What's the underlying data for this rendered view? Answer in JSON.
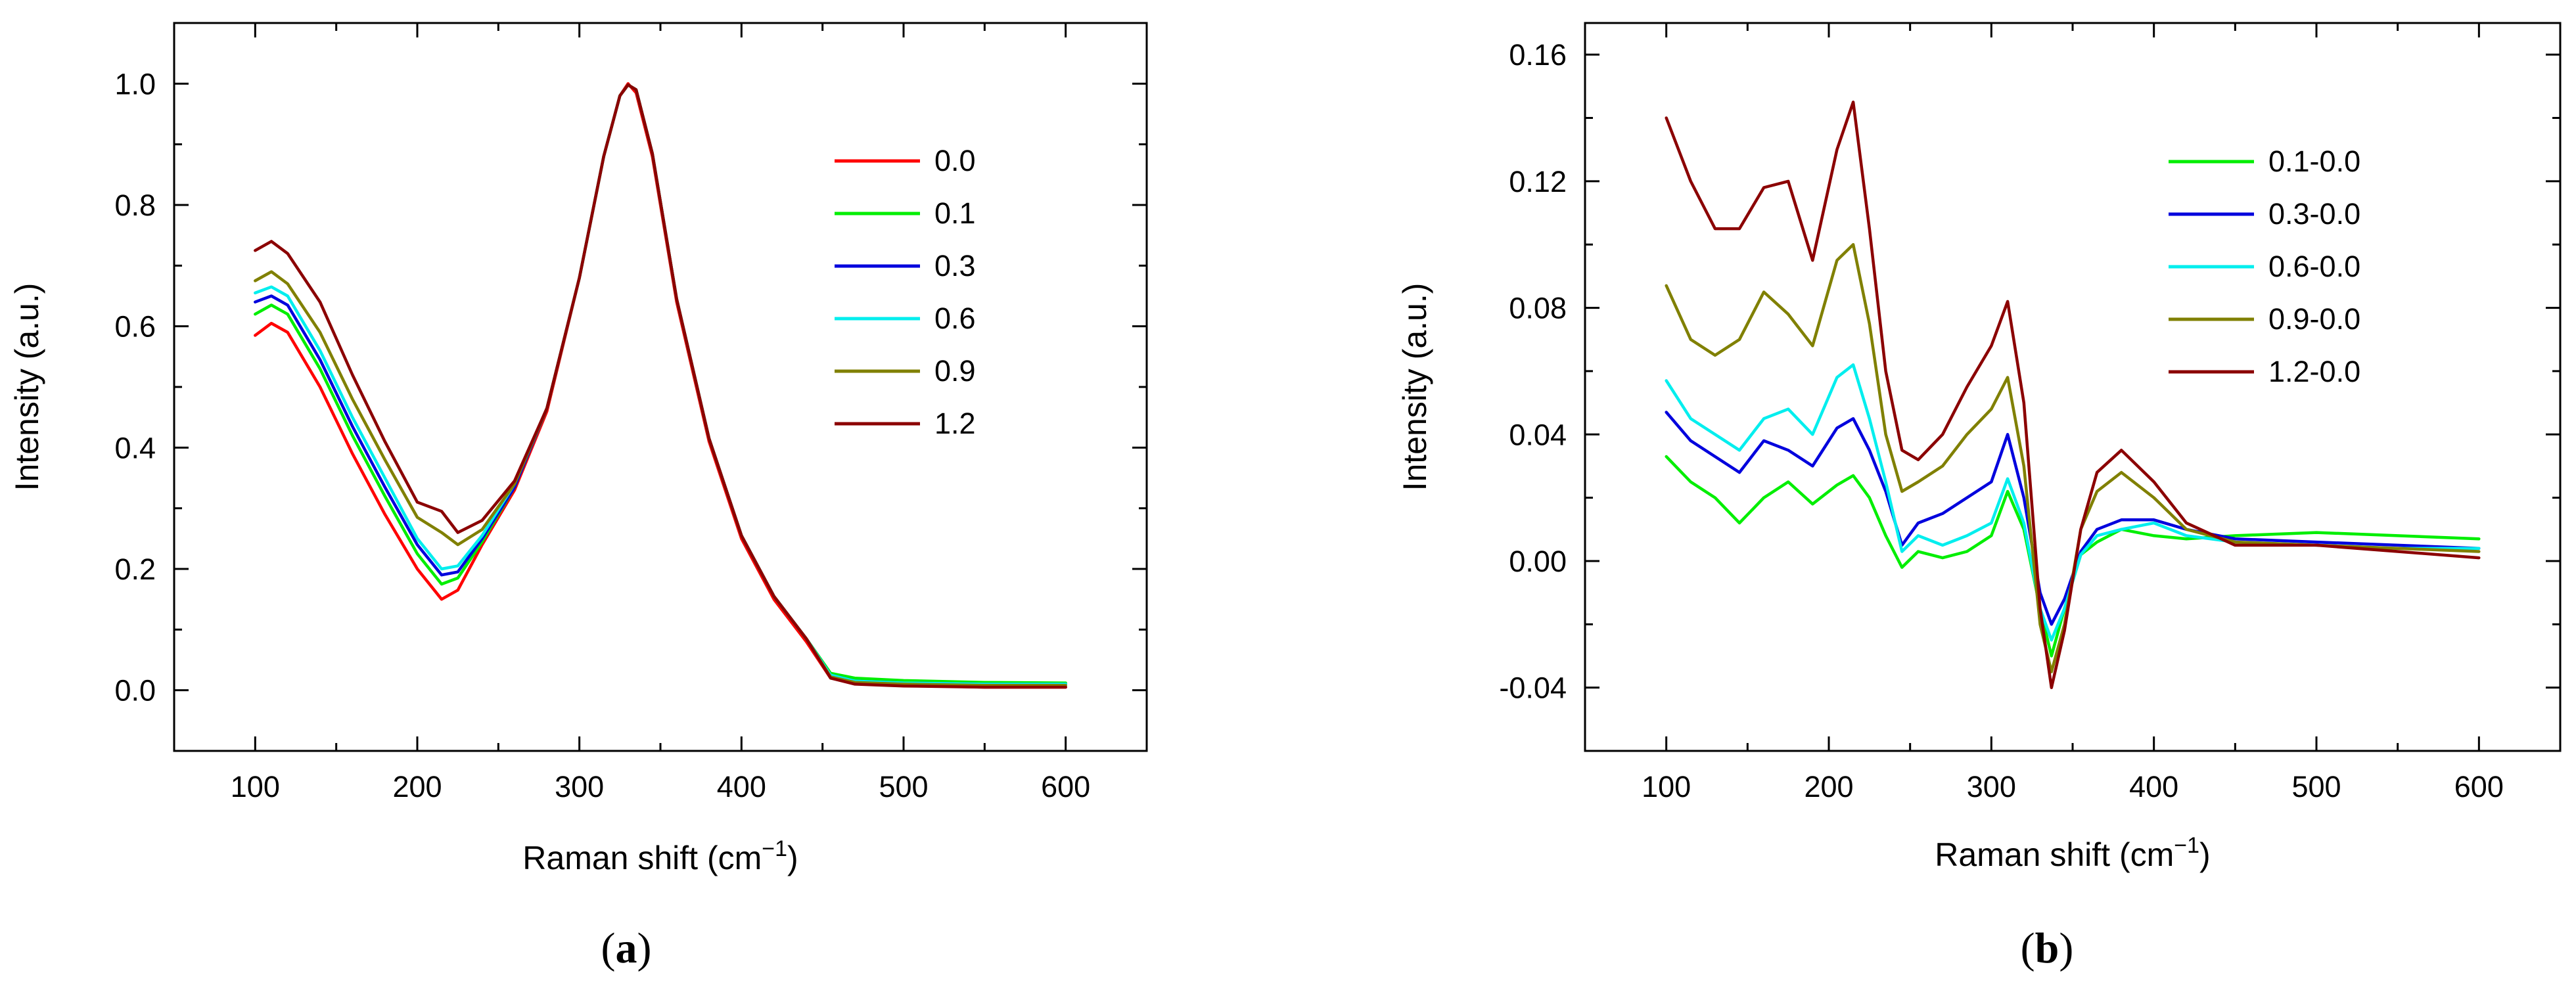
{
  "panels": [
    {
      "label": "a",
      "label_bold": true,
      "chart_data": {
        "type": "line",
        "title": "",
        "xlabel": "Raman shift (cm",
        "xlabel_sup": "−1",
        "xlabel_tail": ")",
        "ylabel": "Intensity (a.u.)",
        "xlim": [
          50,
          650
        ],
        "ylim": [
          -0.1,
          1.1
        ],
        "xticks": [
          100,
          200,
          300,
          400,
          500,
          600
        ],
        "xtick_labels": [
          "100",
          "200",
          "300",
          "400",
          "500",
          "600"
        ],
        "yticks": [
          0.0,
          0.2,
          0.4,
          0.6,
          0.8,
          1.0
        ],
        "ytick_labels": [
          "0.0",
          "0.2",
          "0.4",
          "0.6",
          "0.8",
          "1.0"
        ],
        "grid": false,
        "legend_position": "top-right",
        "series": [
          {
            "name": "0.0",
            "color": "#ff0000",
            "x": [
              100,
              110,
              120,
              140,
              160,
              180,
              200,
              215,
              225,
              240,
              260,
              280,
              300,
              315,
              325,
              330,
              335,
              345,
              360,
              380,
              400,
              420,
              440,
              455,
              470,
              500,
              550,
              600
            ],
            "y": [
              0.585,
              0.605,
              0.59,
              0.5,
              0.39,
              0.29,
              0.2,
              0.15,
              0.165,
              0.24,
              0.33,
              0.46,
              0.68,
              0.88,
              0.98,
              1.0,
              0.985,
              0.88,
              0.64,
              0.41,
              0.25,
              0.15,
              0.08,
              0.02,
              0.012,
              0.008,
              0.005,
              0.005
            ]
          },
          {
            "name": "0.1",
            "color": "#00ee00",
            "x": [
              100,
              110,
              120,
              140,
              160,
              180,
              200,
              215,
              225,
              240,
              260,
              280,
              300,
              315,
              325,
              330,
              335,
              345,
              360,
              380,
              400,
              420,
              440,
              455,
              470,
              500,
              550,
              600
            ],
            "y": [
              0.62,
              0.635,
              0.62,
              0.53,
              0.42,
              0.32,
              0.225,
              0.175,
              0.185,
              0.245,
              0.335,
              0.465,
              0.68,
              0.88,
              0.98,
              0.998,
              0.99,
              0.885,
              0.645,
              0.415,
              0.255,
              0.155,
              0.085,
              0.028,
              0.02,
              0.016,
              0.013,
              0.012
            ]
          },
          {
            "name": "0.3",
            "color": "#0000dd",
            "x": [
              100,
              110,
              120,
              140,
              160,
              180,
              200,
              215,
              225,
              240,
              260,
              280,
              300,
              315,
              325,
              330,
              335,
              345,
              360,
              380,
              400,
              420,
              440,
              455,
              470,
              500,
              550,
              600
            ],
            "y": [
              0.64,
              0.65,
              0.635,
              0.545,
              0.435,
              0.335,
              0.24,
              0.19,
              0.195,
              0.25,
              0.335,
              0.465,
              0.68,
              0.88,
              0.98,
              0.998,
              0.99,
              0.885,
              0.645,
              0.415,
              0.255,
              0.155,
              0.085,
              0.025,
              0.015,
              0.012,
              0.01,
              0.01
            ]
          },
          {
            "name": "0.6",
            "color": "#00eeee",
            "x": [
              100,
              110,
              120,
              140,
              160,
              180,
              200,
              215,
              225,
              240,
              260,
              280,
              300,
              315,
              325,
              330,
              335,
              345,
              360,
              380,
              400,
              420,
              440,
              455,
              470,
              500,
              550,
              600
            ],
            "y": [
              0.655,
              0.665,
              0.65,
              0.56,
              0.45,
              0.35,
              0.25,
              0.2,
              0.205,
              0.255,
              0.34,
              0.465,
              0.68,
              0.88,
              0.98,
              0.998,
              0.99,
              0.885,
              0.645,
              0.415,
              0.255,
              0.155,
              0.085,
              0.025,
              0.015,
              0.012,
              0.01,
              0.01
            ]
          },
          {
            "name": "0.9",
            "color": "#808000",
            "x": [
              100,
              110,
              120,
              140,
              160,
              180,
              200,
              215,
              225,
              240,
              260,
              280,
              300,
              315,
              325,
              330,
              335,
              345,
              360,
              380,
              400,
              420,
              440,
              455,
              470,
              500,
              550,
              600
            ],
            "y": [
              0.675,
              0.69,
              0.67,
              0.59,
              0.48,
              0.38,
              0.285,
              0.26,
              0.24,
              0.265,
              0.34,
              0.465,
              0.68,
              0.88,
              0.98,
              0.998,
              0.99,
              0.885,
              0.645,
              0.415,
              0.255,
              0.155,
              0.085,
              0.022,
              0.013,
              0.01,
              0.008,
              0.008
            ]
          },
          {
            "name": "1.2",
            "color": "#8b0000",
            "x": [
              100,
              110,
              120,
              140,
              160,
              180,
              200,
              215,
              225,
              240,
              260,
              280,
              300,
              315,
              325,
              330,
              335,
              345,
              360,
              380,
              400,
              420,
              440,
              455,
              470,
              500,
              550,
              600
            ],
            "y": [
              0.725,
              0.74,
              0.72,
              0.64,
              0.52,
              0.41,
              0.31,
              0.295,
              0.26,
              0.28,
              0.345,
              0.465,
              0.68,
              0.88,
              0.98,
              0.998,
              0.99,
              0.885,
              0.645,
              0.415,
              0.255,
              0.155,
              0.085,
              0.02,
              0.01,
              0.007,
              0.005,
              0.005
            ]
          }
        ]
      }
    },
    {
      "label": "b",
      "label_bold": true,
      "chart_data": {
        "type": "line",
        "title": "",
        "xlabel": "Raman shift (cm",
        "xlabel_sup": "−1",
        "xlabel_tail": ")",
        "ylabel": "Intensity (a.u.)",
        "xlim": [
          50,
          650
        ],
        "ylim": [
          -0.06,
          0.17
        ],
        "xticks": [
          100,
          200,
          300,
          400,
          500,
          600
        ],
        "xtick_labels": [
          "100",
          "200",
          "300",
          "400",
          "500",
          "600"
        ],
        "yticks": [
          -0.04,
          0.0,
          0.04,
          0.08,
          0.12,
          0.16
        ],
        "ytick_labels": [
          "-0.04",
          "0.00",
          "0.04",
          "0.08",
          "0.12",
          "0.16"
        ],
        "grid": false,
        "legend_position": "top-right",
        "series": [
          {
            "name": "0.1-0.0",
            "color": "#00ee00",
            "x": [
              100,
              115,
              130,
              145,
              160,
              175,
              190,
              205,
              215,
              225,
              235,
              245,
              255,
              270,
              285,
              300,
              310,
              320,
              330,
              337,
              345,
              355,
              365,
              380,
              400,
              420,
              450,
              500,
              550,
              600
            ],
            "y": [
              0.033,
              0.025,
              0.02,
              0.012,
              0.02,
              0.025,
              0.018,
              0.024,
              0.027,
              0.02,
              0.008,
              -0.002,
              0.003,
              0.001,
              0.003,
              0.008,
              0.022,
              0.01,
              -0.015,
              -0.03,
              -0.015,
              0.002,
              0.006,
              0.01,
              0.008,
              0.007,
              0.008,
              0.009,
              0.008,
              0.007
            ]
          },
          {
            "name": "0.3-0.0",
            "color": "#0000dd",
            "x": [
              100,
              115,
              130,
              145,
              160,
              175,
              190,
              205,
              215,
              225,
              235,
              245,
              255,
              270,
              285,
              300,
              310,
              320,
              330,
              337,
              345,
              355,
              365,
              380,
              400,
              420,
              450,
              500,
              550,
              600
            ],
            "y": [
              0.047,
              0.038,
              0.033,
              0.028,
              0.038,
              0.035,
              0.03,
              0.042,
              0.045,
              0.035,
              0.022,
              0.005,
              0.012,
              0.015,
              0.02,
              0.025,
              0.04,
              0.02,
              -0.01,
              -0.02,
              -0.012,
              0.003,
              0.01,
              0.013,
              0.013,
              0.01,
              0.007,
              0.006,
              0.005,
              0.004
            ]
          },
          {
            "name": "0.6-0.0",
            "color": "#00eeee",
            "x": [
              100,
              115,
              130,
              145,
              160,
              175,
              190,
              205,
              215,
              225,
              235,
              245,
              255,
              270,
              285,
              300,
              310,
              320,
              330,
              337,
              345,
              355,
              365,
              380,
              400,
              420,
              450,
              500,
              550,
              600
            ],
            "y": [
              0.057,
              0.045,
              0.04,
              0.035,
              0.045,
              0.048,
              0.04,
              0.058,
              0.062,
              0.045,
              0.025,
              0.003,
              0.008,
              0.005,
              0.008,
              0.012,
              0.026,
              0.012,
              -0.015,
              -0.025,
              -0.015,
              0.002,
              0.008,
              0.01,
              0.012,
              0.008,
              0.006,
              0.005,
              0.004,
              0.004
            ]
          },
          {
            "name": "0.9-0.0",
            "color": "#808000",
            "x": [
              100,
              115,
              130,
              145,
              160,
              175,
              190,
              205,
              215,
              225,
              235,
              245,
              255,
              270,
              285,
              300,
              310,
              320,
              330,
              337,
              345,
              355,
              365,
              380,
              400,
              420,
              450,
              500,
              550,
              600
            ],
            "y": [
              0.087,
              0.07,
              0.065,
              0.07,
              0.085,
              0.078,
              0.068,
              0.095,
              0.1,
              0.075,
              0.04,
              0.022,
              0.025,
              0.03,
              0.04,
              0.048,
              0.058,
              0.03,
              -0.02,
              -0.035,
              -0.02,
              0.01,
              0.022,
              0.028,
              0.02,
              0.01,
              0.006,
              0.005,
              0.004,
              0.003
            ]
          },
          {
            "name": "1.2-0.0",
            "color": "#8b0000",
            "x": [
              100,
              115,
              130,
              145,
              160,
              175,
              190,
              205,
              215,
              225,
              235,
              245,
              255,
              270,
              285,
              300,
              310,
              320,
              330,
              337,
              345,
              355,
              365,
              380,
              400,
              420,
              450,
              500,
              550,
              600
            ],
            "y": [
              0.14,
              0.12,
              0.105,
              0.105,
              0.118,
              0.12,
              0.095,
              0.13,
              0.145,
              0.105,
              0.06,
              0.035,
              0.032,
              0.04,
              0.055,
              0.068,
              0.082,
              0.05,
              -0.015,
              -0.04,
              -0.022,
              0.01,
              0.028,
              0.035,
              0.025,
              0.012,
              0.005,
              0.005,
              0.003,
              0.001
            ]
          }
        ]
      }
    }
  ]
}
